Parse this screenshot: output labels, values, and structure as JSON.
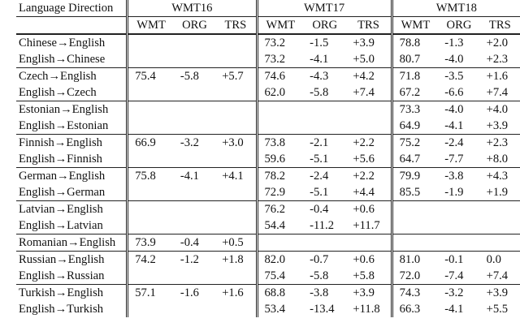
{
  "header": {
    "col0": "Language Direction",
    "groups": [
      "WMT16",
      "WMT17",
      "WMT18"
    ],
    "subcols": [
      "WMT",
      "ORG",
      "TRS"
    ]
  },
  "rows": [
    [
      "Chinese→English",
      "",
      "",
      "",
      "73.2",
      "-1.5",
      "+3.9",
      "78.8",
      "-1.3",
      "+2.0"
    ],
    [
      "English→Chinese",
      "",
      "",
      "",
      "73.2",
      "-4.1",
      "+5.0",
      "80.7",
      "-4.0",
      "+2.3"
    ],
    [
      "Czech→English",
      "75.4",
      "-5.8",
      "+5.7",
      "74.6",
      "-4.3",
      "+4.2",
      "71.8",
      "-3.5",
      "+1.6"
    ],
    [
      "English→Czech",
      "",
      "",
      "",
      "62.0",
      "-5.8",
      "+7.4",
      "67.2",
      "-6.6",
      "+7.4"
    ],
    [
      "Estonian→English",
      "",
      "",
      "",
      "",
      "",
      "",
      "73.3",
      "-4.0",
      "+4.0"
    ],
    [
      "English→Estonian",
      "",
      "",
      "",
      "",
      "",
      "",
      "64.9",
      "-4.1",
      "+3.9"
    ],
    [
      "Finnish→English",
      "66.9",
      "-3.2",
      "+3.0",
      "73.8",
      "-2.1",
      "+2.2",
      "75.2",
      "-2.4",
      "+2.3"
    ],
    [
      "English→Finnish",
      "",
      "",
      "",
      "59.6",
      "-5.1",
      "+5.6",
      "64.7",
      "-7.7",
      "+8.0"
    ],
    [
      "German→English",
      "75.8",
      "-4.1",
      "+4.1",
      "78.2",
      "-2.4",
      "+2.2",
      "79.9",
      "-3.8",
      "+4.3"
    ],
    [
      "English→German",
      "",
      "",
      "",
      "72.9",
      "-5.1",
      "+4.4",
      "85.5",
      "-1.9",
      "+1.9"
    ],
    [
      "Latvian→English",
      "",
      "",
      "",
      "76.2",
      "-0.4",
      "+0.6",
      "",
      "",
      ""
    ],
    [
      "English→Latvian",
      "",
      "",
      "",
      "54.4",
      "-11.2",
      "+11.7",
      "",
      "",
      ""
    ],
    [
      "Romanian→English",
      "73.9",
      "-0.4",
      "+0.5",
      "",
      "",
      "",
      "",
      "",
      ""
    ],
    [
      "Russian→English",
      "74.2",
      "-1.2",
      "+1.8",
      "82.0",
      "-0.7",
      "+0.6",
      "81.0",
      "-0.1",
      "0.0"
    ],
    [
      "English→Russian",
      "",
      "",
      "",
      "75.4",
      "-5.8",
      "+5.8",
      "72.0",
      "-7.4",
      "+7.4"
    ],
    [
      "Turkish→English",
      "57.1",
      "-1.6",
      "+1.6",
      "68.8",
      "-3.8",
      "+3.9",
      "74.3",
      "-3.2",
      "+3.9"
    ],
    [
      "English→Turkish",
      "",
      "",
      "",
      "53.4",
      "-13.4",
      "+11.8",
      "66.3",
      "-4.1",
      "+5.5"
    ]
  ],
  "rule_before_rows": [
    2,
    4,
    6,
    8,
    10,
    12,
    13,
    15
  ]
}
